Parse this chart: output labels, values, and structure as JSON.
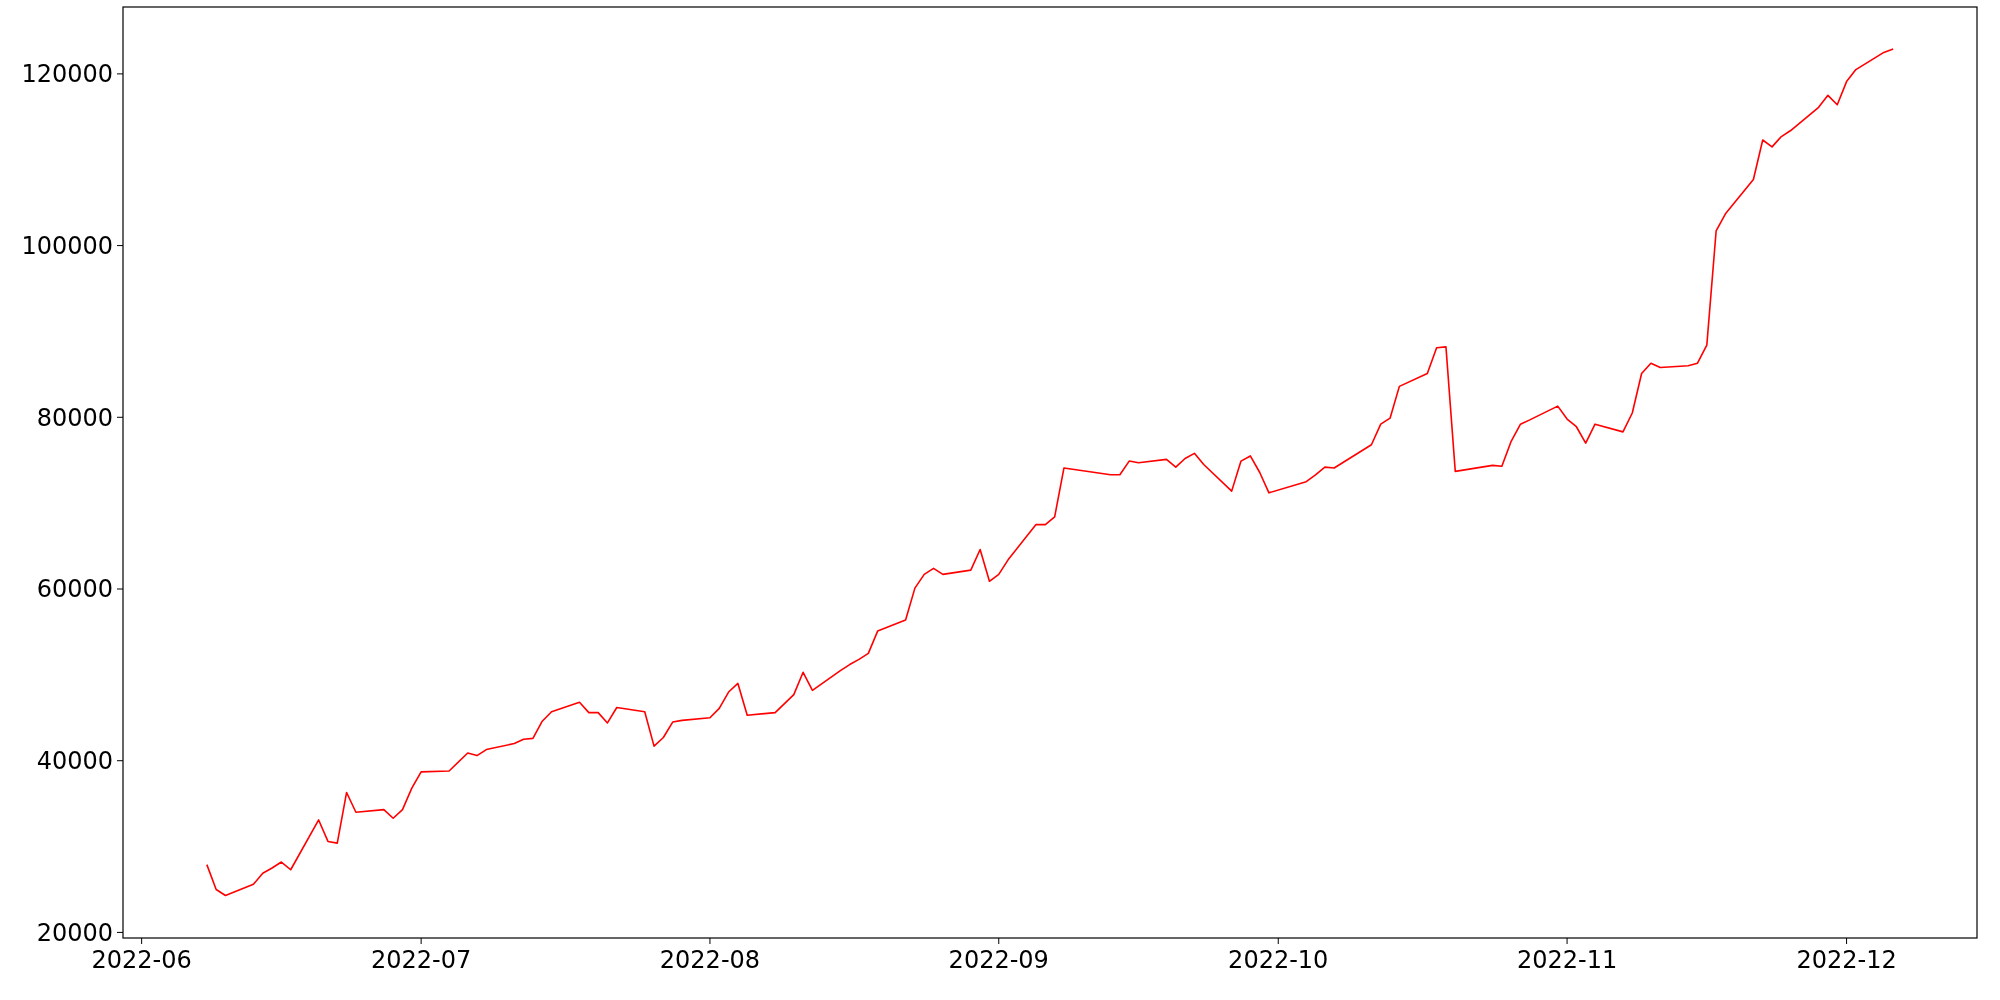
{
  "chart_data": {
    "type": "line",
    "x": [
      "2022-06-08",
      "2022-06-09",
      "2022-06-10",
      "2022-06-13",
      "2022-06-14",
      "2022-06-15",
      "2022-06-16",
      "2022-06-17",
      "2022-06-20",
      "2022-06-21",
      "2022-06-22",
      "2022-06-23",
      "2022-06-24",
      "2022-06-27",
      "2022-06-28",
      "2022-06-29",
      "2022-06-30",
      "2022-07-01",
      "2022-07-04",
      "2022-07-06",
      "2022-07-07",
      "2022-07-08",
      "2022-07-11",
      "2022-07-12",
      "2022-07-13",
      "2022-07-14",
      "2022-07-15",
      "2022-07-18",
      "2022-07-19",
      "2022-07-20",
      "2022-07-21",
      "2022-07-22",
      "2022-07-25",
      "2022-07-26",
      "2022-07-27",
      "2022-07-28",
      "2022-07-29",
      "2022-08-01",
      "2022-08-02",
      "2022-08-03",
      "2022-08-04",
      "2022-08-05",
      "2022-08-08",
      "2022-08-10",
      "2022-08-11",
      "2022-08-12",
      "2022-08-15",
      "2022-08-16",
      "2022-08-17",
      "2022-08-18",
      "2022-08-19",
      "2022-08-22",
      "2022-08-23",
      "2022-08-24",
      "2022-08-25",
      "2022-08-26",
      "2022-08-29",
      "2022-08-30",
      "2022-08-31",
      "2022-09-01",
      "2022-09-02",
      "2022-09-05",
      "2022-09-06",
      "2022-09-07",
      "2022-09-08",
      "2022-09-13",
      "2022-09-14",
      "2022-09-15",
      "2022-09-16",
      "2022-09-19",
      "2022-09-20",
      "2022-09-21",
      "2022-09-22",
      "2022-09-23",
      "2022-09-26",
      "2022-09-27",
      "2022-09-28",
      "2022-09-29",
      "2022-09-30",
      "2022-10-04",
      "2022-10-05",
      "2022-10-06",
      "2022-10-07",
      "2022-10-11",
      "2022-10-12",
      "2022-10-13",
      "2022-10-14",
      "2022-10-17",
      "2022-10-18",
      "2022-10-19",
      "2022-10-20",
      "2022-10-24",
      "2022-10-25",
      "2022-10-26",
      "2022-10-27",
      "2022-10-28",
      "2022-10-31",
      "2022-11-01",
      "2022-11-02",
      "2022-11-03",
      "2022-11-04",
      "2022-11-07",
      "2022-11-08",
      "2022-11-09",
      "2022-11-10",
      "2022-11-11",
      "2022-11-14",
      "2022-11-15",
      "2022-11-16",
      "2022-11-17",
      "2022-11-18",
      "2022-11-21",
      "2022-11-22",
      "2022-11-23",
      "2022-11-24",
      "2022-11-25",
      "2022-11-28",
      "2022-11-29",
      "2022-11-30",
      "2022-12-01",
      "2022-12-02",
      "2022-12-05",
      "2022-12-06"
    ],
    "series": [
      {
        "color": "#ff0000",
        "values": [
          27900,
          25000,
          24300,
          25600,
          26900,
          27500,
          28200,
          27300,
          33100,
          30600,
          30400,
          36300,
          34000,
          34300,
          33300,
          34300,
          36800,
          38700,
          38800,
          40900,
          40600,
          41300,
          42000,
          42500,
          42600,
          44600,
          45700,
          46800,
          45600,
          45600,
          44400,
          46200,
          45700,
          41700,
          42700,
          44500,
          44700,
          45000,
          46100,
          48000,
          49000,
          45300,
          45600,
          47700,
          50300,
          48200,
          50500,
          51200,
          51800,
          52500,
          55100,
          56400,
          60100,
          61700,
          62400,
          61700,
          62200,
          64600,
          60900,
          61700,
          63400,
          67500,
          67500,
          68400,
          74100,
          73300,
          73300,
          74900,
          74700,
          75100,
          74200,
          75200,
          75800,
          74500,
          71400,
          74900,
          75500,
          73600,
          71200,
          72500,
          73300,
          74200,
          74100,
          76800,
          79200,
          79900,
          83600,
          85100,
          88100,
          88200,
          73700,
          74400,
          74300,
          77200,
          79200,
          79700,
          81300,
          79800,
          78900,
          77000,
          79200,
          78300,
          80500,
          85100,
          86300,
          85800,
          86000,
          86300,
          88400,
          101700,
          103700,
          107700,
          112300,
          111500,
          112700,
          113400,
          116100,
          117500,
          116400,
          119100,
          120500,
          122500,
          122900
        ]
      }
    ],
    "xlim": [
      "2022-05-30",
      "2022-12-15"
    ],
    "ylim": [
      19350,
      127790
    ],
    "xticks": [
      {
        "value": "2022-06-01",
        "label": "2022-06"
      },
      {
        "value": "2022-07-01",
        "label": "2022-07"
      },
      {
        "value": "2022-08-01",
        "label": "2022-08"
      },
      {
        "value": "2022-09-01",
        "label": "2022-09"
      },
      {
        "value": "2022-10-01",
        "label": "2022-10"
      },
      {
        "value": "2022-11-01",
        "label": "2022-11"
      },
      {
        "value": "2022-12-01",
        "label": "2022-12"
      }
    ],
    "yticks": [
      20000,
      40000,
      60000,
      80000,
      100000,
      120000
    ]
  }
}
